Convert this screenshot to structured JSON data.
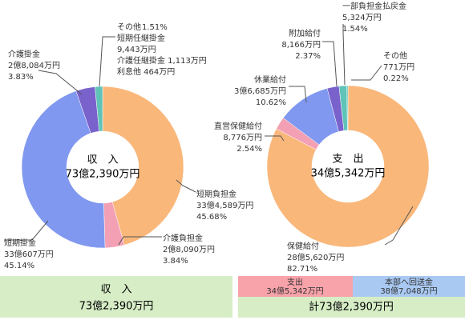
{
  "chart_data": [
    {
      "type": "pie",
      "center_title": "収　入",
      "center_total": "73億2,390万円",
      "categories": [
        "短期負担金",
        "介護負担金",
        "短期掛金",
        "介護掛金",
        "その他"
      ],
      "amounts": [
        "33億4,589万円",
        "2億8,090万円",
        "33億607万円",
        "2億8,084万円",
        null
      ],
      "values": [
        45.68,
        3.84,
        45.14,
        3.83,
        1.51
      ],
      "value_labels": [
        "45.68%",
        "3.84%",
        "45.14%",
        "3.83%",
        "1.51%"
      ],
      "details": [
        "短期任継掛金",
        "9,443万円",
        "介護任継掛金 1,113万円",
        "利息他 464万円"
      ],
      "colors": [
        "#f9b77a",
        "#f4a0b4",
        "#8098ef",
        "#7a62cc",
        "#5fc3b8"
      ]
    },
    {
      "type": "pie",
      "center_title": "支　出",
      "center_total": "34億5,342万円",
      "categories": [
        "保健給付",
        "直営保健給付",
        "休業給付",
        "附加給付",
        "一部負担金払戻金",
        "その他"
      ],
      "amounts": [
        "28億5,620万円",
        "8,776万円",
        "3億6,685万円",
        "8,166万円",
        "5,324万円",
        "771万円"
      ],
      "values": [
        82.71,
        2.54,
        10.62,
        2.37,
        1.54,
        0.22
      ],
      "value_labels": [
        "82.71%",
        "2.54%",
        "10.62%",
        "2.37%",
        "1.54%",
        "0.22%"
      ],
      "colors": [
        "#f9b77a",
        "#f4a0b4",
        "#8098ef",
        "#7a62cc",
        "#5fc3b8",
        "#5fc3b8"
      ]
    }
  ],
  "summary": {
    "income": {
      "title": "収　入",
      "total": "73億2,390万円"
    },
    "expense": {
      "title": "支出",
      "total": "34億5,342万円"
    },
    "transfer": {
      "title": "本部へ回送金",
      "total": "38億7,048万円"
    },
    "grand_total": "計73億2,390万円"
  }
}
